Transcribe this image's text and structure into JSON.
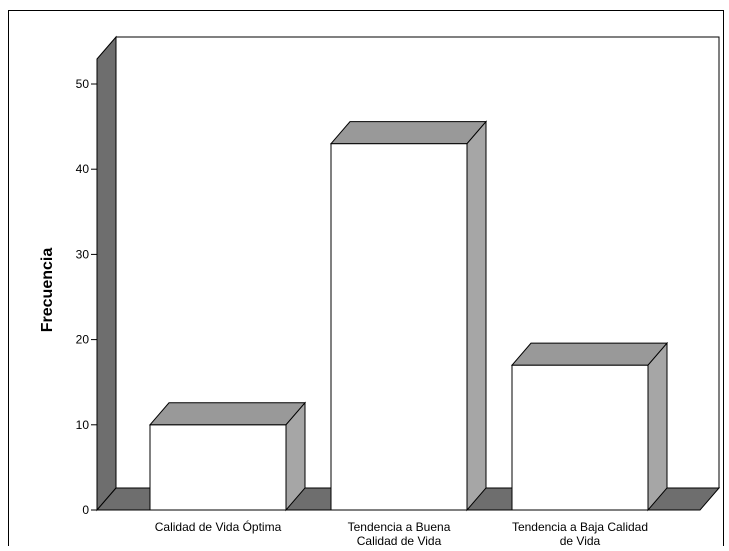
{
  "chart_data": {
    "type": "bar",
    "categories": [
      [
        "Calidad de Vida Óptima"
      ],
      [
        "Tendencia a Buena",
        "Calidad de Vida"
      ],
      [
        "Tendencia a Baja Calidad",
        "de Vida"
      ]
    ],
    "values": [
      10,
      43,
      17
    ],
    "ylabel": "Frecuencia",
    "xlabel": "",
    "ylim": [
      0,
      50
    ],
    "yticks": [
      0,
      10,
      20,
      30,
      40,
      50
    ],
    "grid": false,
    "style": "3d",
    "colors": {
      "bar_face": "#ffffff",
      "bar_top": "#999999",
      "bar_side": "#a6a6a6",
      "back_wall": "#ffffff",
      "left_wall": "#6e6e6e",
      "floor": "#6e6e6e"
    }
  }
}
